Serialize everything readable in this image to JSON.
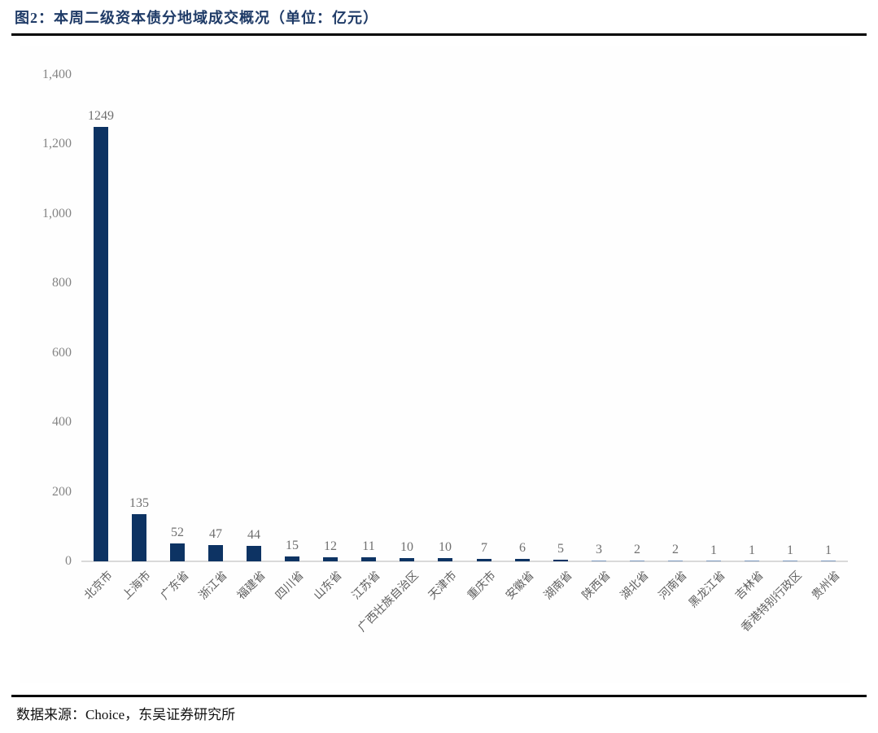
{
  "header": {
    "title": "图2：本周二级资本债分地域成交概况（单位：亿元）"
  },
  "footer": {
    "source": "数据来源：Choice，东吴证券研究所"
  },
  "colors": {
    "title": "#1f3b67",
    "bar": "#0d3363",
    "bar_tiny": "#7e9bc0",
    "tick_label": "#848484",
    "value_label": "#6f6f6f",
    "x_label": "#5f5f5f",
    "axis_line": "#d9d9d9",
    "rule": "#000000"
  },
  "chart_data": {
    "type": "bar",
    "title": "本周二级资本债分地域成交概况",
    "unit": "亿元",
    "categories": [
      "北京市",
      "上海市",
      "广东省",
      "浙江省",
      "福建省",
      "四川省",
      "山东省",
      "江苏省",
      "广西壮族自治区",
      "天津市",
      "重庆市",
      "安徽省",
      "湖南省",
      "陕西省",
      "湖北省",
      "河南省",
      "黑龙江省",
      "吉林省",
      "香港特别行政区",
      "贵州省"
    ],
    "values": [
      1249,
      135,
      52,
      47,
      44,
      15,
      12,
      11,
      10,
      10,
      7,
      6,
      5,
      3,
      2,
      2,
      1,
      1,
      1,
      1
    ],
    "xlabel": "",
    "ylabel": "",
    "ylim": [
      0,
      1400
    ],
    "y_tick_step": 200,
    "y_ticks": [
      "0",
      "200",
      "400",
      "600",
      "800",
      "1,000",
      "1,200",
      "1,400"
    ],
    "grid": false,
    "legend": false,
    "value_labels": true
  }
}
